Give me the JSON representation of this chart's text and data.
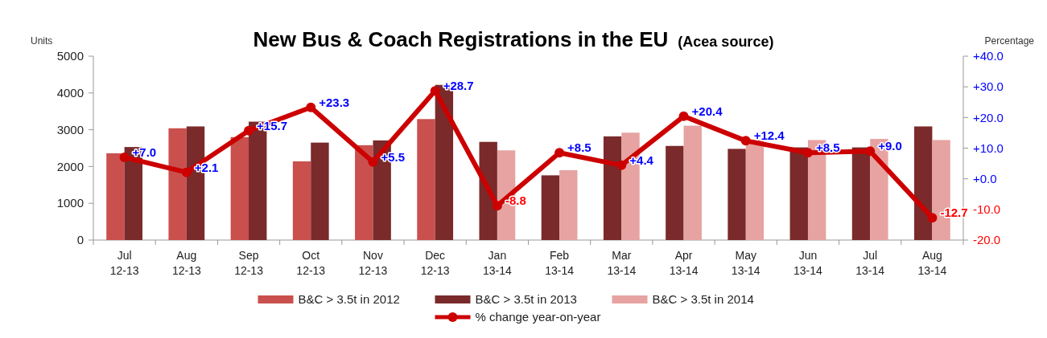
{
  "chart_data": {
    "type": "bar",
    "title": "New Bus & Coach Registrations in the EU",
    "subtitle": "(Acea source)",
    "ylabel": "Units",
    "y2label": "Percentage",
    "categories": [
      "Jul 12-13",
      "Aug 12-13",
      "Sep 12-13",
      "Oct 12-13",
      "Nov 12-13",
      "Dec 12-13",
      "Jan 13-14",
      "Feb 13-14",
      "Mar 13-14",
      "Apr 13-14",
      "May 13-14",
      "Jun 13-14",
      "Jul 13-14",
      "Aug 13-14"
    ],
    "series": [
      {
        "name": "B&C > 3.5t in 2012",
        "color": "#c9504d",
        "values": [
          2360,
          3040,
          2800,
          2140,
          2580,
          3290,
          null,
          null,
          null,
          null,
          null,
          null,
          null,
          null
        ]
      },
      {
        "name": "B&C > 3.5t in 2013",
        "color": "#7a2a2a",
        "values": [
          2530,
          3090,
          3220,
          2650,
          2710,
          4220,
          2670,
          1760,
          2820,
          2560,
          2480,
          2520,
          2520,
          3090
        ]
      },
      {
        "name": "B&C > 3.5t in 2014",
        "color": "#e6a3a1",
        "values": [
          null,
          null,
          null,
          null,
          null,
          null,
          2440,
          1900,
          2920,
          3110,
          2720,
          2720,
          2750,
          2720
        ]
      },
      {
        "name": "% change year-on-year",
        "type": "line",
        "axis": "y2",
        "color": "#cc0000",
        "marker": "circle",
        "values": [
          7.0,
          2.1,
          15.7,
          23.3,
          5.5,
          28.7,
          -8.8,
          8.5,
          4.4,
          20.4,
          12.4,
          8.5,
          9.0,
          -12.7
        ],
        "value_labels": [
          "+7.0",
          "+2.1",
          "+15.7",
          "+23.3",
          "+5.5",
          "+28.7",
          "-8.8",
          "+8.5",
          "+4.4",
          "+20.4",
          "+12.4",
          "+8.5",
          "+9.0",
          "-12.7"
        ]
      }
    ],
    "ylim": [
      0,
      5000
    ],
    "yticks": [
      0,
      1000,
      2000,
      3000,
      4000,
      5000
    ],
    "y2lim": [
      -20,
      40
    ],
    "y2ticks": [
      {
        "value": -20,
        "label": "-20.0"
      },
      {
        "value": -10,
        "label": "-10.0"
      },
      {
        "value": 0,
        "label": "+0.0"
      },
      {
        "value": 10,
        "label": "+10.0"
      },
      {
        "value": 20,
        "label": "+20.0"
      },
      {
        "value": 30,
        "label": "+30.0"
      },
      {
        "value": 40,
        "label": "+40.0"
      }
    ],
    "grid": false,
    "legend": "bottom"
  }
}
